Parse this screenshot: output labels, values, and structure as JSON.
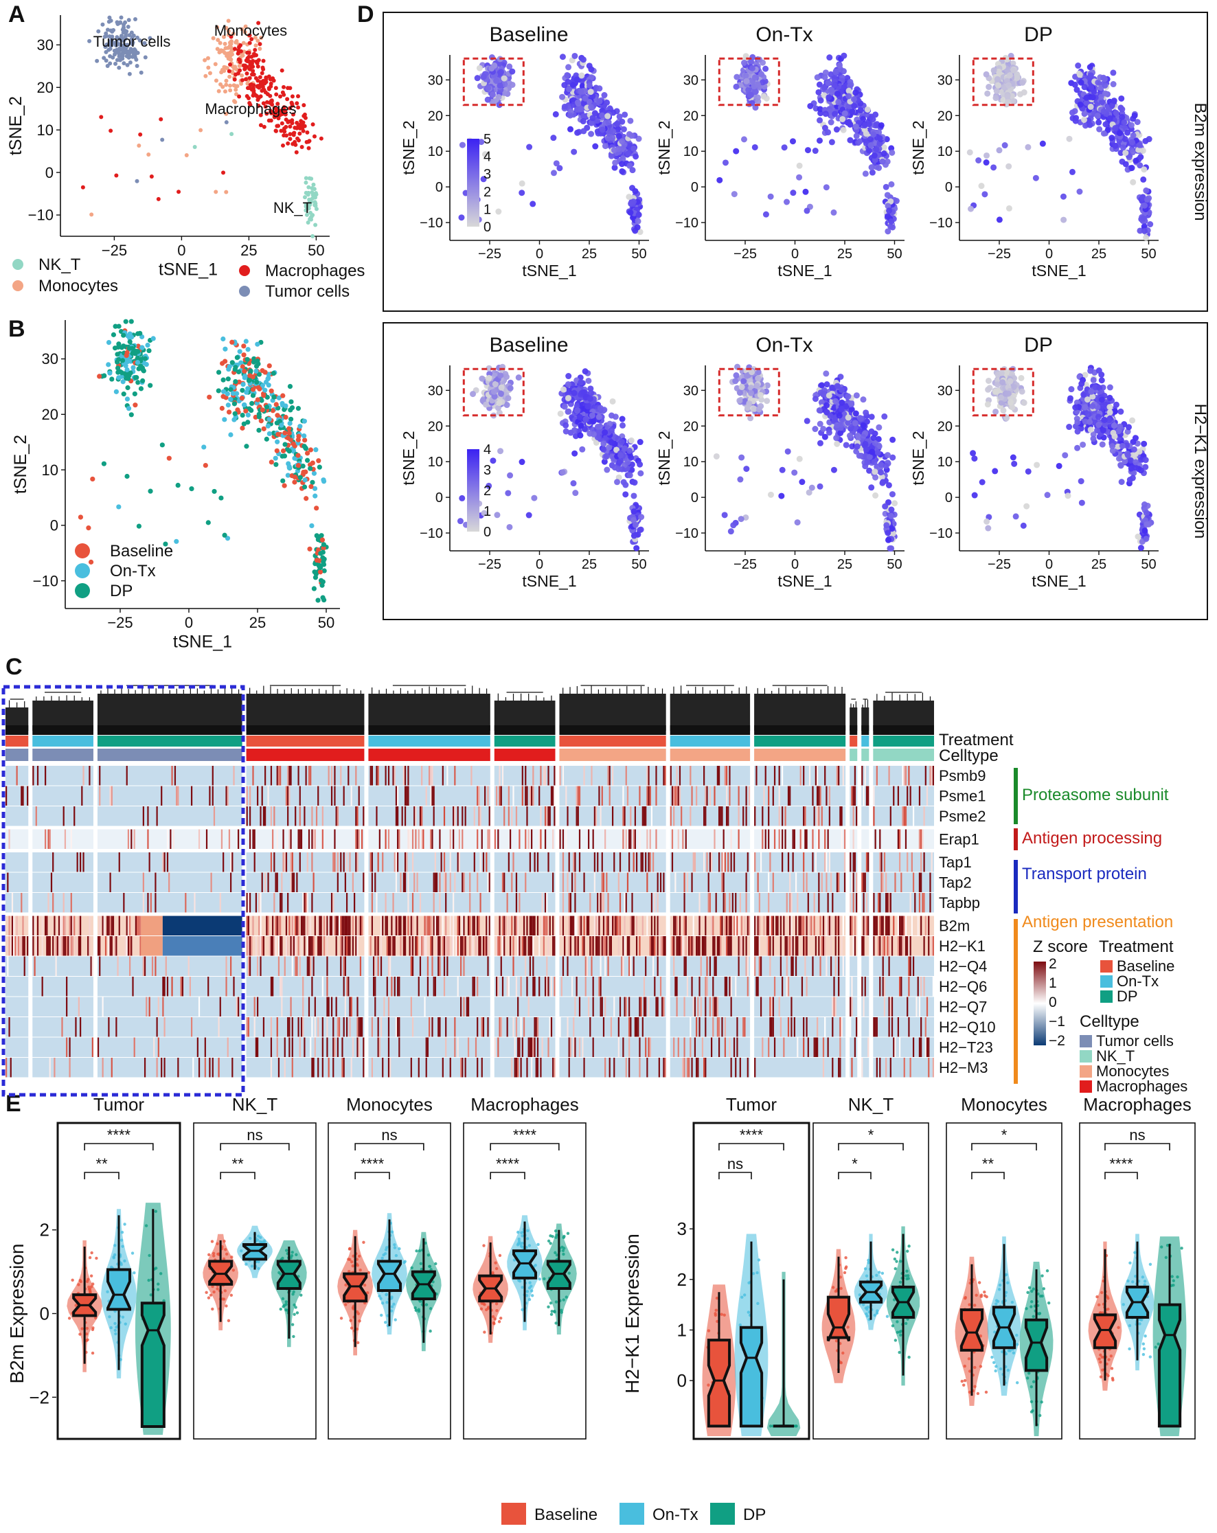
{
  "panel_letters": {
    "A": "A",
    "B": "B",
    "C": "C",
    "D": "D",
    "E": "E"
  },
  "colors": {
    "baseline": "#e8533c",
    "ontx": "#49bede",
    "dp": "#109f83",
    "nkt": "#92d7c4",
    "macrophages": "#e11d1d",
    "monocytes": "#f3a585",
    "tumor": "#7c8db5",
    "expr_low": "#d8d8d8",
    "expr_high": "#3b22f2",
    "z_low": "#0b3a74",
    "z_mid": "#ffffff",
    "z_high": "#7d0b10",
    "dashed_red": "#d62b2b",
    "dashed_blue": "#2b2bd6"
  },
  "chart_data": [
    {
      "id": "A",
      "type": "scatter",
      "xlabel": "tSNE_1",
      "ylabel": "tSNE_2",
      "xlim": [
        -45,
        55
      ],
      "ylim": [
        -15,
        37
      ],
      "xticks": [
        -25,
        0,
        25,
        50
      ],
      "yticks": [
        -10,
        0,
        10,
        20,
        30
      ],
      "cluster_labels": [
        "Tumor cells",
        "Monocytes",
        "Macrophages",
        "NK_T"
      ],
      "legend": [
        {
          "name": "NK_T",
          "color": "#92d7c4"
        },
        {
          "name": "Monocytes",
          "color": "#f3a585"
        },
        {
          "name": "Macrophages",
          "color": "#e11d1d"
        },
        {
          "name": "Tumor cells",
          "color": "#7c8db5"
        }
      ],
      "clusters": [
        {
          "name": "Tumor cells",
          "color": "#7c8db5",
          "cx": -22,
          "cy": 30,
          "sx": 4,
          "sy": 3,
          "n": 170
        },
        {
          "name": "Monocytes",
          "color": "#f3a585",
          "cx": 20,
          "cy": 25,
          "sx": 4,
          "sy": 6,
          "n": 200
        },
        {
          "name": "Macrophages",
          "color": "#e11d1d",
          "cx": 32,
          "cy": 17,
          "sx": 5,
          "sy": 4,
          "n": 260
        },
        {
          "name": "NK_T",
          "color": "#92d7c4",
          "cx": 48,
          "cy": -7,
          "sx": 1,
          "sy": 3,
          "n": 60
        }
      ]
    },
    {
      "id": "B",
      "type": "scatter",
      "xlabel": "tSNE_1",
      "ylabel": "tSNE_2",
      "xlim": [
        -45,
        55
      ],
      "ylim": [
        -15,
        37
      ],
      "xticks": [
        -25,
        0,
        25,
        50
      ],
      "yticks": [
        -10,
        0,
        10,
        20,
        30
      ],
      "legend": [
        {
          "name": "Baseline",
          "color": "#e8533c"
        },
        {
          "name": "On-Tx",
          "color": "#49bede"
        },
        {
          "name": "DP",
          "color": "#109f83"
        }
      ]
    },
    {
      "id": "D",
      "type": "scatter",
      "xlabel": "tSNE_1",
      "ylabel": "tSNE_2",
      "xlim": [
        -45,
        55
      ],
      "ylim": [
        -15,
        37
      ],
      "xticks": [
        -25,
        0,
        25,
        50
      ],
      "yticks": [
        -10,
        0,
        10,
        20,
        30
      ],
      "column_titles": [
        "Baseline",
        "On-Tx",
        "DP"
      ],
      "rows": [
        {
          "side_label": "B2m expression",
          "colorbar_ticks": [
            5,
            4,
            3,
            2,
            1,
            0
          ],
          "colorbar_max": 5
        },
        {
          "side_label": "H2−K1 expression",
          "colorbar_ticks": [
            4,
            3,
            2,
            1,
            0
          ],
          "colorbar_max": 4
        }
      ]
    },
    {
      "id": "C",
      "type": "heatmap",
      "annotation_rows": [
        "Treatment",
        "Celltype"
      ],
      "genes": [
        "Psmb9",
        "Psme1",
        "Psme2",
        "Erap1",
        "Tap1",
        "Tap2",
        "Tapbp",
        "B2m",
        "H2−K1",
        "H2−Q4",
        "H2−Q6",
        "H2−Q7",
        "H2−Q10",
        "H2−T23",
        "H2−M3"
      ],
      "gene_groups": [
        {
          "name": "Proteasome subunit",
          "color": "#1a8a2a",
          "genes": [
            "Psmb9",
            "Psme1",
            "Psme2"
          ]
        },
        {
          "name": "Antigen processing",
          "color": "#c21a1a",
          "genes": [
            "Erap1"
          ]
        },
        {
          "name": "Transport protein",
          "color": "#1a2abf",
          "genes": [
            "Tap1",
            "Tap2",
            "Tapbp"
          ]
        },
        {
          "name": "Antigen presentation",
          "color": "#f08a1c",
          "genes": [
            "B2m",
            "H2−K1",
            "H2−Q4",
            "H2−Q6",
            "H2−Q7",
            "H2−Q10",
            "H2−T23",
            "H2−M3"
          ]
        }
      ],
      "zscore_title": "Z score",
      "zscore_ticks": [
        "2",
        "1",
        "0",
        "−1",
        "−2"
      ],
      "legend_treatment_title": "Treatment",
      "legend_treatment": [
        {
          "name": "Baseline",
          "color": "#e8533c"
        },
        {
          "name": "On-Tx",
          "color": "#49bede"
        },
        {
          "name": "DP",
          "color": "#109f83"
        }
      ],
      "legend_celltype_title": "Celltype",
      "legend_celltype": [
        {
          "name": "Tumor cells",
          "color": "#7c8db5"
        },
        {
          "name": "NK_T",
          "color": "#92d7c4"
        },
        {
          "name": "Monocytes",
          "color": "#f3a585"
        },
        {
          "name": "Macrophages",
          "color": "#e11d1d"
        }
      ],
      "column_blocks": [
        {
          "treatment": "Baseline",
          "celltype": "Tumor cells",
          "cells": 30
        },
        {
          "treatment": "On-Tx",
          "celltype": "Tumor cells",
          "cells": 80
        },
        {
          "treatment": "DP",
          "celltype": "Tumor cells",
          "cells": 190
        },
        {
          "treatment": "Baseline",
          "celltype": "Macrophages",
          "cells": 155
        },
        {
          "treatment": "On-Tx",
          "celltype": "Macrophages",
          "cells": 160
        },
        {
          "treatment": "DP",
          "celltype": "Macrophages",
          "cells": 80
        },
        {
          "treatment": "Baseline",
          "celltype": "Monocytes",
          "cells": 140
        },
        {
          "treatment": "On-Tx",
          "celltype": "Monocytes",
          "cells": 105
        },
        {
          "treatment": "DP",
          "celltype": "Monocytes",
          "cells": 120
        },
        {
          "treatment": "Baseline",
          "celltype": "NK_T",
          "cells": 10
        },
        {
          "treatment": "On-Tx",
          "celltype": "NK_T",
          "cells": 10
        },
        {
          "treatment": "DP",
          "celltype": "NK_T",
          "cells": 80
        }
      ]
    },
    {
      "id": "E1",
      "type": "violin-box",
      "ylabel": "B2m Expression",
      "ylim": [
        -2.75,
        2.75
      ],
      "yticks": [
        -2,
        0,
        2
      ],
      "groups": [
        "Baseline",
        "On-Tx",
        "DP"
      ],
      "facets": [
        {
          "title": "Tumor",
          "medians": [
            0.2,
            0.45,
            -0.4
          ],
          "q1": [
            -0.05,
            0.1,
            -2.7
          ],
          "q3": [
            0.45,
            1.05,
            0.25
          ],
          "whisker_low": [
            -1.2,
            -1.35,
            -2.7
          ],
          "whisker_high": [
            1.6,
            2.35,
            2.5
          ],
          "comparisons": [
            {
              "pair": [
                "Baseline",
                "On-Tx"
              ],
              "label": "**"
            },
            {
              "pair": [
                "Baseline",
                "DP"
              ],
              "label": "****"
            }
          ]
        },
        {
          "title": "NK_T",
          "medians": [
            0.95,
            1.5,
            0.95
          ],
          "q1": [
            0.7,
            1.3,
            0.6
          ],
          "q3": [
            1.25,
            1.65,
            1.25
          ],
          "whisker_low": [
            -0.2,
            1.05,
            -0.6
          ],
          "whisker_high": [
            1.75,
            1.95,
            1.6
          ],
          "comparisons": [
            {
              "pair": [
                "Baseline",
                "On-Tx"
              ],
              "label": "**"
            },
            {
              "pair": [
                "Baseline",
                "DP"
              ],
              "label": "ns"
            }
          ]
        },
        {
          "title": "Monocytes",
          "medians": [
            0.65,
            0.95,
            0.7
          ],
          "q1": [
            0.3,
            0.55,
            0.35
          ],
          "q3": [
            0.95,
            1.25,
            1.0
          ],
          "whisker_low": [
            -0.8,
            -0.3,
            -0.7
          ],
          "whisker_high": [
            1.85,
            2.25,
            1.8
          ],
          "comparisons": [
            {
              "pair": [
                "Baseline",
                "On-Tx"
              ],
              "label": "****"
            },
            {
              "pair": [
                "Baseline",
                "DP"
              ],
              "label": "ns"
            }
          ]
        },
        {
          "title": "Macrophages",
          "medians": [
            0.6,
            1.2,
            0.95
          ],
          "q1": [
            0.3,
            0.85,
            0.6
          ],
          "q3": [
            0.9,
            1.5,
            1.25
          ],
          "whisker_low": [
            -0.5,
            -0.2,
            -0.3
          ],
          "whisker_high": [
            1.7,
            2.2,
            2.0
          ],
          "comparisons": [
            {
              "pair": [
                "Baseline",
                "On-Tx"
              ],
              "label": "****"
            },
            {
              "pair": [
                "Baseline",
                "DP"
              ],
              "label": "****"
            }
          ]
        }
      ]
    },
    {
      "id": "E2",
      "type": "violin-box",
      "ylabel": "H2−K1 Expression",
      "ylim": [
        -0.95,
        3.6
      ],
      "yticks": [
        0,
        1,
        2,
        3
      ],
      "groups": [
        "Baseline",
        "On-Tx",
        "DP"
      ],
      "facets": [
        {
          "title": "Tumor",
          "medians": [
            0.0,
            0.45,
            -0.9
          ],
          "q1": [
            -0.9,
            -0.9,
            -0.9
          ],
          "q3": [
            0.8,
            1.05,
            -0.9
          ],
          "whisker_low": [
            -0.9,
            -0.9,
            -0.9
          ],
          "whisker_high": [
            1.75,
            2.75,
            2.0
          ],
          "comparisons": [
            {
              "pair": [
                "Baseline",
                "On-Tx"
              ],
              "label": "ns"
            },
            {
              "pair": [
                "Baseline",
                "DP"
              ],
              "label": "****"
            }
          ]
        },
        {
          "title": "NK_T",
          "medians": [
            1.05,
            1.75,
            1.55
          ],
          "q1": [
            0.85,
            1.55,
            1.25
          ],
          "q3": [
            1.65,
            1.95,
            1.85
          ],
          "whisker_low": [
            0.15,
            1.2,
            0.1
          ],
          "whisker_high": [
            2.45,
            2.75,
            2.9
          ],
          "comparisons": [
            {
              "pair": [
                "Baseline",
                "On-Tx"
              ],
              "label": "*"
            },
            {
              "pair": [
                "Baseline",
                "DP"
              ],
              "label": "*"
            }
          ]
        },
        {
          "title": "Monocytes",
          "medians": [
            0.95,
            1.05,
            0.75
          ],
          "q1": [
            0.6,
            0.65,
            0.2
          ],
          "q3": [
            1.4,
            1.45,
            1.2
          ],
          "whisker_low": [
            -0.3,
            -0.1,
            -0.9
          ],
          "whisker_high": [
            2.3,
            2.7,
            2.2
          ],
          "comparisons": [
            {
              "pair": [
                "Baseline",
                "On-Tx"
              ],
              "label": "**"
            },
            {
              "pair": [
                "Baseline",
                "DP"
              ],
              "label": "*"
            }
          ]
        },
        {
          "title": "Macrophages",
          "medians": [
            1.0,
            1.55,
            0.9
          ],
          "q1": [
            0.65,
            1.25,
            -0.9
          ],
          "q3": [
            1.3,
            1.85,
            1.5
          ],
          "whisker_low": [
            0.0,
            0.4,
            -0.9
          ],
          "whisker_high": [
            2.6,
            2.75,
            2.7
          ],
          "comparisons": [
            {
              "pair": [
                "Baseline",
                "On-Tx"
              ],
              "label": "****"
            },
            {
              "pair": [
                "Baseline",
                "DP"
              ],
              "label": "ns"
            }
          ]
        }
      ]
    }
  ],
  "bottom_legend": [
    {
      "name": "Baseline",
      "color": "#e8533c"
    },
    {
      "name": "On-Tx",
      "color": "#49bede"
    },
    {
      "name": "DP",
      "color": "#109f83"
    }
  ]
}
